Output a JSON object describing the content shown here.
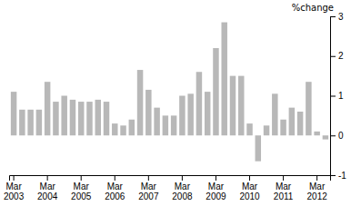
{
  "chart_data": {
    "type": "bar",
    "y_label": "%change",
    "categories": [
      "Mar\n2003",
      null,
      null,
      null,
      "Mar\n2004",
      null,
      null,
      null,
      "Mar\n2005",
      null,
      null,
      null,
      "Mar\n2006",
      null,
      null,
      null,
      "Mar\n2007",
      null,
      null,
      null,
      "Mar\n2008",
      null,
      null,
      null,
      "Mar\n2009",
      null,
      null,
      null,
      "Mar\n2010",
      null,
      null,
      null,
      "Mar\n2011",
      null,
      null,
      null,
      "Mar\n2012",
      null
    ],
    "values": [
      1.1,
      0.65,
      0.65,
      0.65,
      1.35,
      0.85,
      1.0,
      0.9,
      0.85,
      0.85,
      0.9,
      0.85,
      0.3,
      0.25,
      0.4,
      1.65,
      1.15,
      0.7,
      0.5,
      0.5,
      1.0,
      1.05,
      1.6,
      1.1,
      2.2,
      2.85,
      1.5,
      1.5,
      0.3,
      -0.65,
      0.25,
      1.05,
      0.4,
      0.7,
      0.6,
      1.35,
      0.1,
      -0.1
    ],
    "color": "#b8b8b8",
    "ylim": [
      -1,
      3
    ],
    "yticks": [
      -1,
      0,
      1,
      2,
      3
    ]
  }
}
